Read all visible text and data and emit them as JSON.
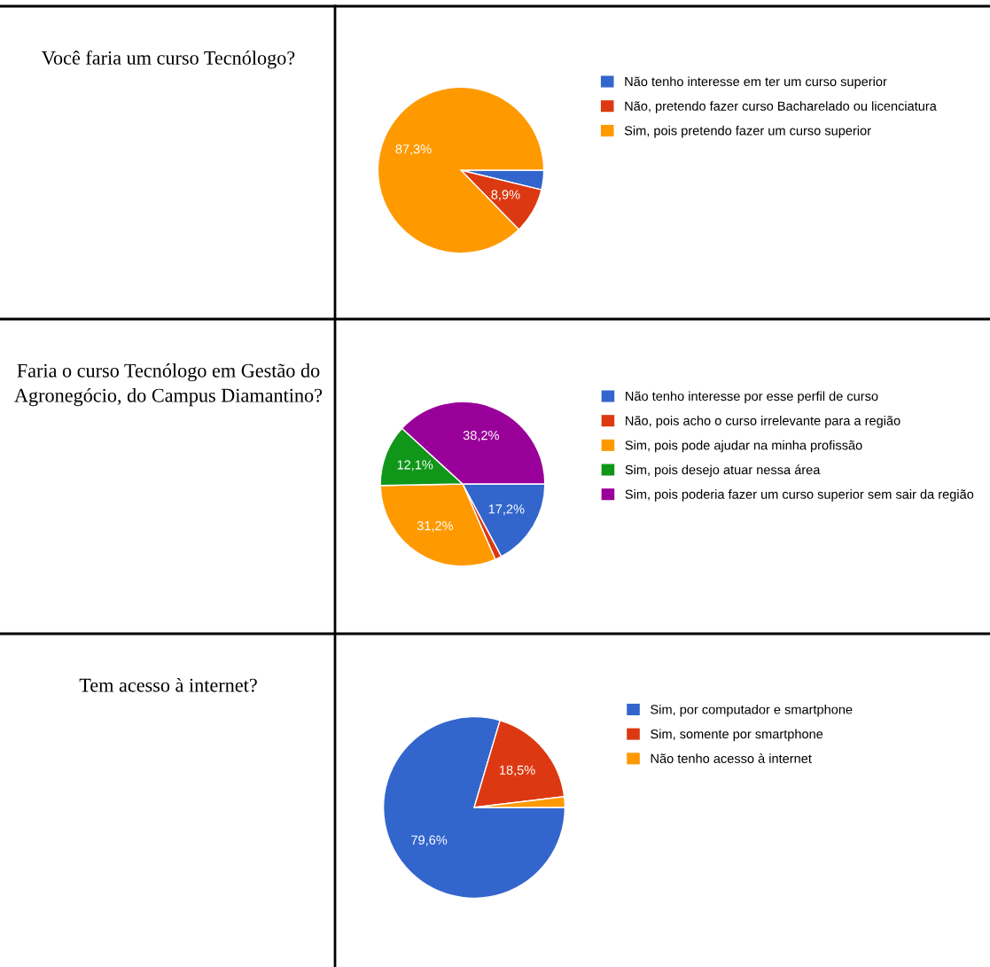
{
  "chart_data": [
    {
      "type": "pie",
      "title": "Você faria um curso Tecnólogo?",
      "categories": [
        "Não tenho interesse em ter um curso superior",
        "Não, pretendo fazer curso Bacharelado ou licenciatura",
        "Sim, pois pretendo fazer um curso superior"
      ],
      "values": [
        3.8,
        8.9,
        87.3
      ],
      "colors": [
        "#3366cc",
        "#dc3912",
        "#ff9900"
      ],
      "value_labels": [
        null,
        "8,9%",
        "87,3%"
      ],
      "legend": "right"
    },
    {
      "type": "pie",
      "title": "Faria o curso Tecnólogo em Gestão do Agronegócio, do Campus Diamantino?",
      "categories": [
        "Não tenho interesse por esse perfil de curso",
        "Não, pois acho o curso irrelevante para a região",
        "Sim, pois pode ajudar na minha profissão",
        "Sim, pois desejo atuar nessa área",
        "Sim, pois poderia fazer um curso superior sem sair da região"
      ],
      "values": [
        17.2,
        1.3,
        31.2,
        12.1,
        38.2
      ],
      "colors": [
        "#3366cc",
        "#dc3912",
        "#ff9900",
        "#109618",
        "#990099"
      ],
      "value_labels": [
        "17,2%",
        null,
        "31,2%",
        "12,1%",
        "38,2%"
      ],
      "legend": "right"
    },
    {
      "type": "pie",
      "title": "Tem acesso à internet?",
      "categories": [
        "Sim, por computador e smartphone",
        "Sim, somente por smartphone",
        "Não tenho acesso à internet"
      ],
      "values": [
        79.6,
        18.5,
        1.9
      ],
      "colors": [
        "#3366cc",
        "#dc3912",
        "#ff9900"
      ],
      "value_labels": [
        "79,6%",
        "18,5%",
        null
      ],
      "legend": "right"
    }
  ]
}
